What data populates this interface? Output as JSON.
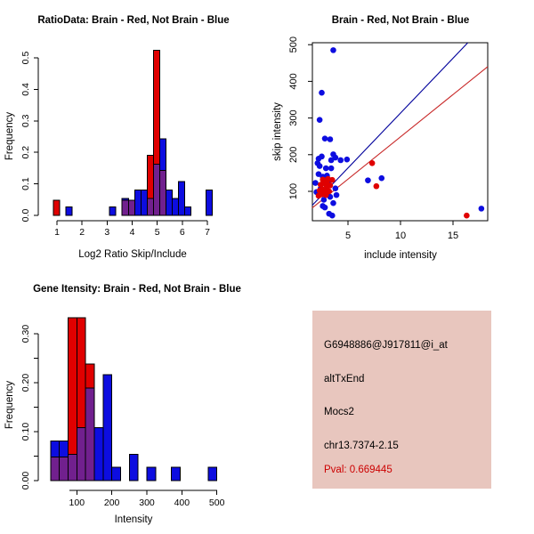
{
  "figure_title": "R graphics: splice ratio / intensity diagnostics",
  "colors": {
    "red": "#E00000",
    "blue": "#0D0DE0",
    "overlap": "#71208E",
    "line_blue": "#00009B",
    "line_red": "#C82828",
    "axis": "#000000",
    "info_bg": "#E8C6BE",
    "pval": "#CC0000"
  },
  "chart_data": [
    {
      "id": "ratio_hist",
      "type": "bar",
      "title": "RatioData: Brain - Red, Not Brain - Blue",
      "xlabel": "Log2 Ratio Skip/Include",
      "ylabel": "Frequency",
      "legend": {
        "red": "Brain",
        "blue": "Not Brain"
      },
      "x_ticks": [
        1,
        2,
        3,
        4,
        5,
        6,
        7
      ],
      "y_ticks": [
        {
          "v": 0.0,
          "label": "0.0"
        },
        {
          "v": 0.1,
          "label": "0.1"
        },
        {
          "v": 0.2,
          "label": "0.2"
        },
        {
          "v": 0.3,
          "label": "0.3"
        },
        {
          "v": 0.4,
          "label": "0.4"
        },
        {
          "v": 0.5,
          "label": "0.5"
        }
      ],
      "xlim": [
        0.7,
        7.4
      ],
      "ylim": [
        0,
        0.52
      ],
      "grid": false,
      "bin_width": 0.25,
      "bars": [
        {
          "x": 0.85,
          "red": 0.048,
          "blue": 0
        },
        {
          "x": 1.35,
          "red": 0,
          "blue": 0.027
        },
        {
          "x": 3.1,
          "red": 0,
          "blue": 0.027
        },
        {
          "x": 3.6,
          "red": 0.048,
          "blue": 0.054
        },
        {
          "x": 3.85,
          "red": 0.048,
          "blue": 0.048
        },
        {
          "x": 4.1,
          "red": 0,
          "blue": 0.081
        },
        {
          "x": 4.35,
          "red": 0,
          "blue": 0.081
        },
        {
          "x": 4.6,
          "red": 0.19,
          "blue": 0.054
        },
        {
          "x": 4.85,
          "red": 0.524,
          "blue": 0.162
        },
        {
          "x": 5.1,
          "red": 0.143,
          "blue": 0.243
        },
        {
          "x": 5.35,
          "red": 0,
          "blue": 0.081
        },
        {
          "x": 5.6,
          "red": 0,
          "blue": 0.054
        },
        {
          "x": 5.85,
          "red": 0,
          "blue": 0.108
        },
        {
          "x": 6.1,
          "red": 0,
          "blue": 0.027
        },
        {
          "x": 6.95,
          "red": 0,
          "blue": 0.081
        }
      ]
    },
    {
      "id": "intensity_scatter",
      "type": "scatter",
      "title": "Brain - Red, Not Brain - Blue",
      "xlabel": "include intensity",
      "ylabel": "skip intensity",
      "legend": {
        "red": "Brain",
        "blue": "Not Brain"
      },
      "x_ticks": [
        5,
        10,
        15
      ],
      "y_ticks": [
        100,
        200,
        300,
        400,
        500
      ],
      "xlim": [
        1.6,
        18.3
      ],
      "ylim": [
        20,
        505
      ],
      "grid": false,
      "blue_points": [
        [
          3.6,
          485
        ],
        [
          2.5,
          369
        ],
        [
          2.3,
          295
        ],
        [
          2.8,
          244
        ],
        [
          3.3,
          242
        ],
        [
          2.2,
          189
        ],
        [
          2.5,
          195
        ],
        [
          3.6,
          201
        ],
        [
          3.8,
          192
        ],
        [
          3.4,
          185
        ],
        [
          4.3,
          185
        ],
        [
          4.9,
          187
        ],
        [
          2.1,
          177
        ],
        [
          2.3,
          169
        ],
        [
          2.9,
          163
        ],
        [
          3.4,
          163
        ],
        [
          2.2,
          147
        ],
        [
          3.0,
          143
        ],
        [
          1.9,
          123
        ],
        [
          2.6,
          140
        ],
        [
          3.1,
          125
        ],
        [
          2.4,
          108
        ],
        [
          3.0,
          95
        ],
        [
          3.8,
          108
        ],
        [
          3.9,
          90
        ],
        [
          3.6,
          68
        ],
        [
          2.8,
          56
        ],
        [
          3.2,
          39
        ],
        [
          3.5,
          34
        ],
        [
          2.7,
          77
        ],
        [
          3.3,
          85
        ],
        [
          2.0,
          98
        ],
        [
          2.6,
          60
        ],
        [
          6.9,
          130
        ],
        [
          8.2,
          136
        ],
        [
          17.7,
          53
        ]
      ],
      "red_points": [
        [
          2.6,
          132
        ],
        [
          3.1,
          134
        ],
        [
          3.5,
          131
        ],
        [
          2.4,
          118
        ],
        [
          2.9,
          118
        ],
        [
          3.3,
          116
        ],
        [
          2.3,
          102
        ],
        [
          2.8,
          102
        ],
        [
          3.2,
          100
        ],
        [
          2.5,
          92
        ],
        [
          2.9,
          90
        ],
        [
          2.7,
          125
        ],
        [
          3.0,
          110
        ],
        [
          2.4,
          95
        ],
        [
          2.6,
          105
        ],
        [
          2.2,
          88
        ],
        [
          3.0,
          127
        ],
        [
          2.8,
          130
        ],
        [
          7.3,
          177
        ],
        [
          7.7,
          114
        ],
        [
          16.3,
          34
        ]
      ],
      "lines": [
        {
          "series": "blue",
          "x1": 1.6,
          "y1": 62,
          "x2": 16.4,
          "y2": 505
        },
        {
          "series": "red",
          "x1": 1.6,
          "y1": 55,
          "x2": 18.3,
          "y2": 440
        }
      ]
    },
    {
      "id": "gene_hist",
      "type": "bar",
      "title": "Gene Itensity: Brain - Red, Not Brain - Blue",
      "xlabel": "Intensity",
      "ylabel": "Frequency",
      "legend": {
        "red": "Brain",
        "blue": "Not Brain"
      },
      "x_ticks": [
        100,
        200,
        300,
        400,
        500
      ],
      "y_ticks": [
        {
          "v": 0.0,
          "label": "0.00"
        },
        {
          "v": 0.05,
          "label": ""
        },
        {
          "v": 0.1,
          "label": "0.10"
        },
        {
          "v": 0.15,
          "label": ""
        },
        {
          "v": 0.2,
          "label": "0.20"
        },
        {
          "v": 0.25,
          "label": ""
        },
        {
          "v": 0.3,
          "label": "0.30"
        }
      ],
      "xlim": [
        25,
        500
      ],
      "ylim": [
        0,
        0.34
      ],
      "grid": false,
      "bin_width": 25,
      "bars": [
        {
          "x": 25,
          "red": 0.048,
          "blue": 0.081
        },
        {
          "x": 50,
          "red": 0.048,
          "blue": 0.081
        },
        {
          "x": 75,
          "red": 0.333,
          "blue": 0.054
        },
        {
          "x": 100,
          "red": 0.333,
          "blue": 0.108
        },
        {
          "x": 125,
          "red": 0.238,
          "blue": 0.189
        },
        {
          "x": 150,
          "red": 0,
          "blue": 0.108
        },
        {
          "x": 175,
          "red": 0,
          "blue": 0.216
        },
        {
          "x": 200,
          "red": 0,
          "blue": 0.027
        },
        {
          "x": 250,
          "red": 0,
          "blue": 0.054
        },
        {
          "x": 300,
          "red": 0,
          "blue": 0.027
        },
        {
          "x": 370,
          "red": 0,
          "blue": 0.027
        },
        {
          "x": 475,
          "red": 0,
          "blue": 0.027
        }
      ]
    }
  ],
  "info_panel": {
    "bg": "#E8C6BE",
    "lines": [
      "G6948886@J917811@i_at",
      "altTxEnd",
      "Mocs2",
      "chr13.7374-2.15"
    ],
    "pval": "Pval: 0.669445"
  }
}
